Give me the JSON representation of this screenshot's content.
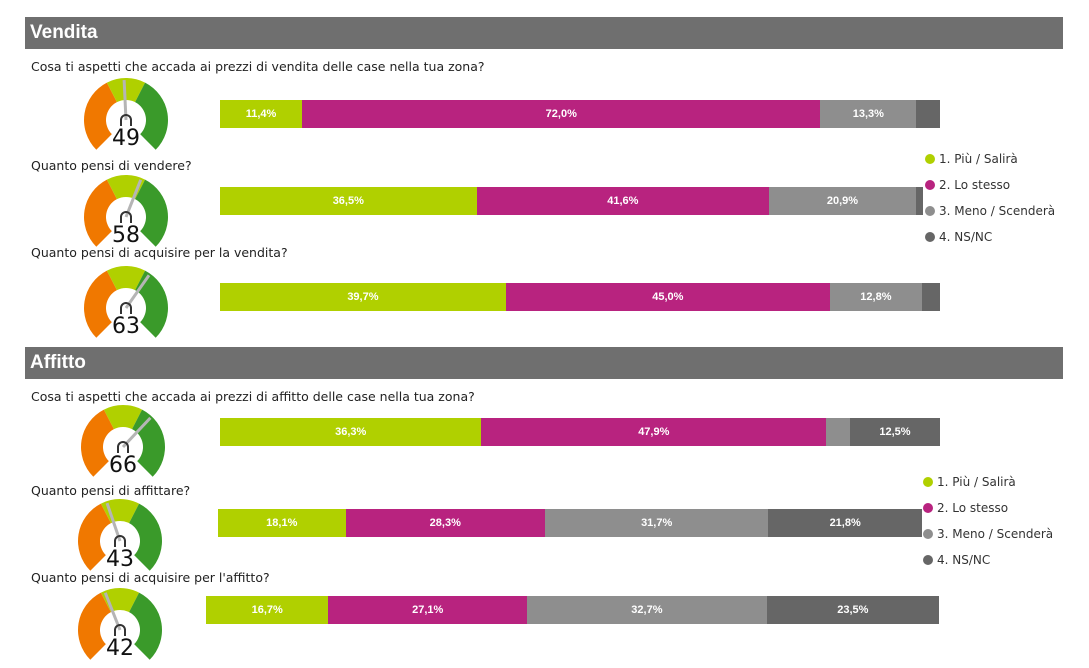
{
  "colors": {
    "piu": "#b0d000",
    "stesso": "#b8237f",
    "meno": "#8e8e8e",
    "nsnc": "#666666",
    "gauge_orange": "#f07800",
    "gauge_lime": "#b0d000",
    "gauge_green": "#3a9a2a",
    "header_bg": "#6f6f6f"
  },
  "sections": [
    {
      "title": "Vendita",
      "legend": [
        "1. Più / Salirà",
        "2. Lo stesso",
        "3. Meno / Scenderà",
        "4. NS/NC"
      ]
    },
    {
      "title": "Affitto",
      "legend": [
        "1. Più / Salirà",
        "2. Lo stesso",
        "3. Meno / Scenderà",
        "4. NS/NC"
      ]
    }
  ],
  "chart_data": [
    {
      "type": "bar",
      "orientation": "horizontal",
      "stacked": true,
      "title": "Cosa ti aspetti che accada ai prezzi di vendita delle case nella tua zona?",
      "gauge_value": 49,
      "series": [
        {
          "name": "1. Più / Salirà",
          "value": 11.4,
          "label": "11,4%"
        },
        {
          "name": "2. Lo stesso",
          "value": 72.0,
          "label": "72,0%"
        },
        {
          "name": "3. Meno / Scenderà",
          "value": 13.3,
          "label": "13,3%"
        },
        {
          "name": "4. NS/NC",
          "value": 3.3,
          "label": ""
        }
      ]
    },
    {
      "type": "bar",
      "orientation": "horizontal",
      "stacked": true,
      "title": "Quanto pensi di vendere?",
      "gauge_value": 58,
      "series": [
        {
          "name": "1. Più / Salirà",
          "value": 36.5,
          "label": "36,5%"
        },
        {
          "name": "2. Lo stesso",
          "value": 41.6,
          "label": "41,6%"
        },
        {
          "name": "3. Meno / Scenderà",
          "value": 20.9,
          "label": "20,9%"
        },
        {
          "name": "4. NS/NC",
          "value": 1.0,
          "label": ""
        }
      ]
    },
    {
      "type": "bar",
      "orientation": "horizontal",
      "stacked": true,
      "title": "Quanto pensi di acquisire per la vendita?",
      "gauge_value": 63,
      "series": [
        {
          "name": "1. Più / Salirà",
          "value": 39.7,
          "label": "39,7%"
        },
        {
          "name": "2. Lo stesso",
          "value": 45.0,
          "label": "45,0%"
        },
        {
          "name": "3. Meno / Scenderà",
          "value": 12.8,
          "label": "12,8%"
        },
        {
          "name": "4. NS/NC",
          "value": 2.5,
          "label": ""
        }
      ]
    },
    {
      "type": "bar",
      "orientation": "horizontal",
      "stacked": true,
      "title": "Cosa ti aspetti che accada ai prezzi di affitto delle case nella tua zona?",
      "gauge_value": 66,
      "series": [
        {
          "name": "1. Più / Salirà",
          "value": 36.3,
          "label": "36,3%"
        },
        {
          "name": "2. Lo stesso",
          "value": 47.9,
          "label": "47,9%"
        },
        {
          "name": "3. Meno / Scenderà",
          "value": 3.3,
          "label": ""
        },
        {
          "name": "4. NS/NC",
          "value": 12.5,
          "label": "12,5%"
        }
      ]
    },
    {
      "type": "bar",
      "orientation": "horizontal",
      "stacked": true,
      "title": "Quanto pensi di affittare?",
      "gauge_value": 43,
      "series": [
        {
          "name": "1. Più / Salirà",
          "value": 18.1,
          "label": "18,1%"
        },
        {
          "name": "2. Lo stesso",
          "value": 28.3,
          "label": "28,3%"
        },
        {
          "name": "3. Meno / Scenderà",
          "value": 31.7,
          "label": "31,7%"
        },
        {
          "name": "4. NS/NC",
          "value": 21.8,
          "label": "21,8%"
        }
      ]
    },
    {
      "type": "bar",
      "orientation": "horizontal",
      "stacked": true,
      "title": "Quanto pensi di acquisire per l'affitto?",
      "gauge_value": 42,
      "series": [
        {
          "name": "1. Più / Salirà",
          "value": 16.7,
          "label": "16,7%"
        },
        {
          "name": "2. Lo stesso",
          "value": 27.1,
          "label": "27,1%"
        },
        {
          "name": "3. Meno / Scenderà",
          "value": 32.7,
          "label": "32,7%"
        },
        {
          "name": "4. NS/NC",
          "value": 23.5,
          "label": "23,5%"
        }
      ]
    }
  ]
}
